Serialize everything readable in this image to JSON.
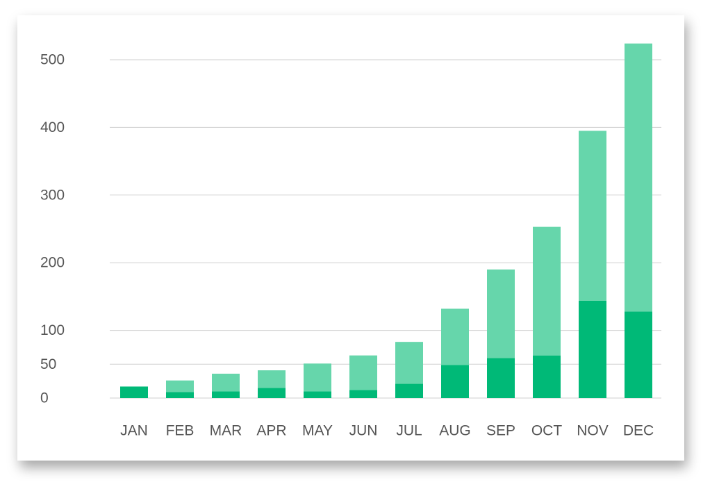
{
  "chart_data": {
    "type": "stacked_bar",
    "categories": [
      "JAN",
      "FEB",
      "MAR",
      "APR",
      "MAY",
      "JUN",
      "JUL",
      "AUG",
      "SEP",
      "OCT",
      "NOV",
      "DEC"
    ],
    "series": [
      {
        "color": "#00b977",
        "values": [
          17,
          9,
          10,
          15,
          10,
          12,
          21,
          49,
          59,
          63,
          144,
          128
        ]
      },
      {
        "color": "#66d6ab",
        "values": [
          0,
          17,
          26,
          26,
          41,
          51,
          62,
          83,
          131,
          190,
          251,
          396
        ]
      }
    ],
    "ylim": [
      0,
      500
    ],
    "yticks": [
      0,
      50,
      100,
      200,
      300,
      400,
      500
    ],
    "grid": true
  }
}
